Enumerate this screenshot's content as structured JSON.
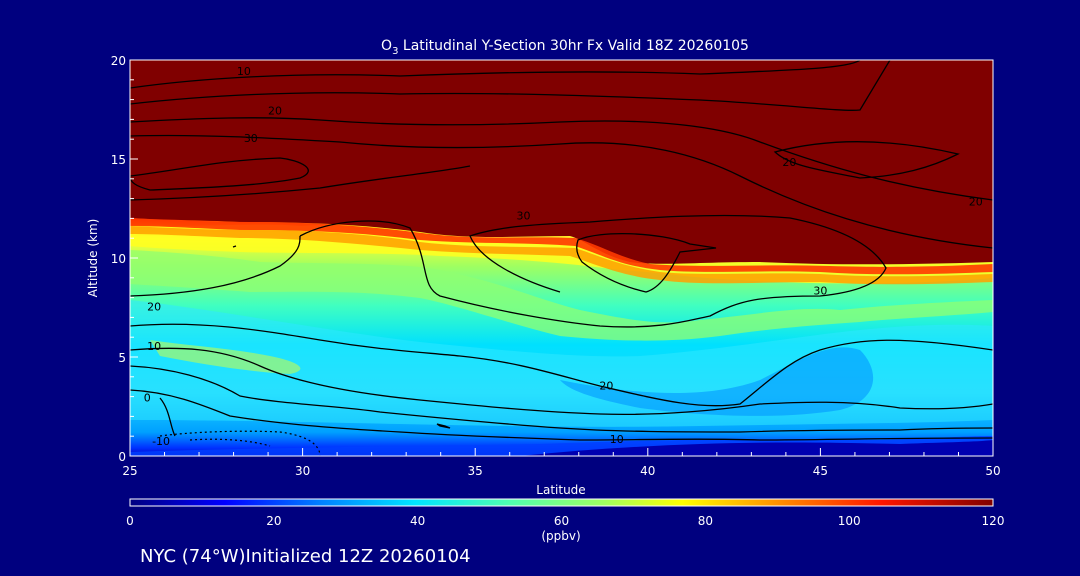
{
  "chart_data": {
    "type": "heatmap",
    "title_main": "O",
    "title_sub": "3",
    "title_rest": " Latitudinal Y-Section 30hr  Fx Valid 18Z 20260105",
    "xlabel": "Latitude",
    "ylabel": "Altitude (km)",
    "xlim": [
      25,
      50
    ],
    "ylim": [
      0,
      20
    ],
    "xticks": [
      25,
      30,
      35,
      40,
      45,
      50
    ],
    "yticks": [
      0,
      5,
      10,
      15,
      20
    ],
    "colorbar": {
      "range": [
        0,
        120
      ],
      "ticks": [
        0,
        20,
        40,
        60,
        80,
        100,
        120
      ],
      "unit": "(ppbv)"
    },
    "footer": "NYC (74°W)Initialized 12Z 20260104",
    "contour_labels": [
      {
        "text": "10",
        "lat": 28.3,
        "alt": 19.4
      },
      {
        "text": "20",
        "lat": 29.2,
        "alt": 17.4
      },
      {
        "text": "30",
        "lat": 28.5,
        "alt": 16.0
      },
      {
        "text": "20",
        "lat": 44.1,
        "alt": 14.8
      },
      {
        "text": "20",
        "lat": 49.5,
        "alt": 12.8
      },
      {
        "text": "30",
        "lat": 36.4,
        "alt": 12.1
      },
      {
        "text": "30",
        "lat": 45.0,
        "alt": 8.3
      },
      {
        "text": "20",
        "lat": 25.7,
        "alt": 7.5
      },
      {
        "text": "10",
        "lat": 25.7,
        "alt": 5.5
      },
      {
        "text": "0",
        "lat": 25.5,
        "alt": 2.9
      },
      {
        "text": "-10",
        "lat": 25.9,
        "alt": 0.7
      },
      {
        "text": "20",
        "lat": 38.8,
        "alt": 3.5
      },
      {
        "text": "10",
        "lat": 39.1,
        "alt": 0.8
      }
    ],
    "grid": false
  }
}
